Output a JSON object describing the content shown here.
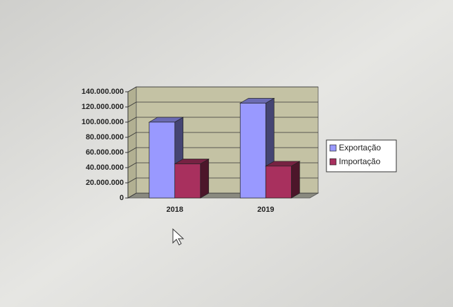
{
  "chart_data": {
    "type": "bar3d",
    "categories": [
      "2018",
      "2019"
    ],
    "series": [
      {
        "name": "Exportação",
        "color": "#9999ff",
        "values": [
          100000000,
          125000000
        ]
      },
      {
        "name": "Importação",
        "color": "#a8305e",
        "values": [
          45000000,
          42000000
        ]
      }
    ],
    "ylim": [
      0,
      140000000
    ],
    "yticks": [
      0,
      {
        "value": 20000000,
        "label": "20.000.000"
      },
      {
        "value": 40000000,
        "label": "40.000.000"
      },
      {
        "value": 60000000,
        "label": "60.000.000"
      },
      {
        "value": 80000000,
        "label": "80.000.000"
      },
      {
        "value": 100000000,
        "label": "100.000.000"
      },
      {
        "value": 120000000,
        "label": "120.000.000"
      },
      {
        "value": 140000000,
        "label": "140.000.000"
      }
    ],
    "grid": true,
    "legend": "right"
  }
}
